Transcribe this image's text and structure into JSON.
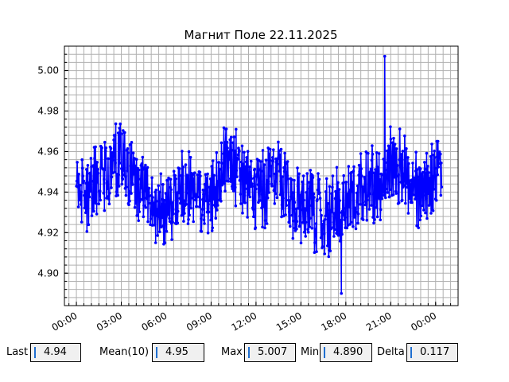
{
  "chart_data": {
    "type": "line",
    "title": "Магнит Поле 22.11.2025",
    "xlabel": "",
    "ylabel": "",
    "x_tick_labels": [
      "00:00",
      "03:00",
      "06:00",
      "09:00",
      "12:00",
      "15:00",
      "18:00",
      "21:00",
      "00:00"
    ],
    "x_tick_hours": [
      0,
      3,
      6,
      9,
      12,
      15,
      18,
      21,
      24
    ],
    "xlim_hours": [
      -0.8,
      25.5
    ],
    "y_ticks": [
      "4.90",
      "4.92",
      "4.94",
      "4.96",
      "4.98",
      "5.00"
    ],
    "ylim": [
      4.884,
      5.012
    ],
    "grid": true,
    "series": [
      {
        "color": "#0000ff",
        "marker": "circle",
        "approx_hourly_mean": [
          [
            0.0,
            4.942
          ],
          [
            0.5,
            4.935
          ],
          [
            1.0,
            4.94
          ],
          [
            1.5,
            4.948
          ],
          [
            2.0,
            4.945
          ],
          [
            2.5,
            4.955
          ],
          [
            3.0,
            4.958
          ],
          [
            3.5,
            4.952
          ],
          [
            4.0,
            4.945
          ],
          [
            4.5,
            4.94
          ],
          [
            5.0,
            4.935
          ],
          [
            5.5,
            4.932
          ],
          [
            6.0,
            4.935
          ],
          [
            6.5,
            4.933
          ],
          [
            7.0,
            4.94
          ],
          [
            7.5,
            4.945
          ],
          [
            8.0,
            4.942
          ],
          [
            8.5,
            4.935
          ],
          [
            9.0,
            4.935
          ],
          [
            9.5,
            4.948
          ],
          [
            10.0,
            4.958
          ],
          [
            10.5,
            4.955
          ],
          [
            11.0,
            4.945
          ],
          [
            11.5,
            4.94
          ],
          [
            12.0,
            4.938
          ],
          [
            12.5,
            4.94
          ],
          [
            13.0,
            4.945
          ],
          [
            13.5,
            4.948
          ],
          [
            14.0,
            4.94
          ],
          [
            14.5,
            4.935
          ],
          [
            15.0,
            4.932
          ],
          [
            15.5,
            4.935
          ],
          [
            16.0,
            4.93
          ],
          [
            16.5,
            4.928
          ],
          [
            17.0,
            4.93
          ],
          [
            17.5,
            4.932
          ],
          [
            18.0,
            4.935
          ],
          [
            18.5,
            4.938
          ],
          [
            19.0,
            4.942
          ],
          [
            19.5,
            4.945
          ],
          [
            20.0,
            4.94
          ],
          [
            20.5,
            4.945
          ],
          [
            21.0,
            4.955
          ],
          [
            21.5,
            4.95
          ],
          [
            22.0,
            4.948
          ],
          [
            22.5,
            4.945
          ],
          [
            23.0,
            4.94
          ],
          [
            23.5,
            4.945
          ],
          [
            24.0,
            4.95
          ],
          [
            24.4,
            4.948
          ]
        ]
      }
    ],
    "extremes": [
      {
        "x_hour": 20.6,
        "y": 5.007
      },
      {
        "x_hour": 17.7,
        "y": 4.89
      }
    ]
  },
  "stats": {
    "last_label": "Last",
    "last_value": "4.94",
    "mean_label": "Mean(10)",
    "mean_value": "4.95",
    "max_label": "Max",
    "max_value": "5.007",
    "min_label": "Min",
    "min_value": "4.890",
    "delta_label": "Delta",
    "delta_value": "0.117"
  }
}
